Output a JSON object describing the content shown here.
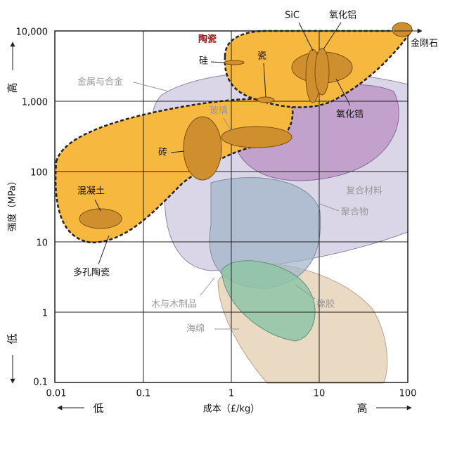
{
  "axes": {
    "x_label": "成本（£/kg）",
    "y_label": "强度（MPa）",
    "x_ticks": [
      "0.01",
      "0.1",
      "1",
      "10",
      "100"
    ],
    "y_ticks": [
      "10,000",
      "1,000",
      "100",
      "10",
      "1",
      "0.1"
    ],
    "x_low": "低",
    "x_high": "高",
    "y_high": "高",
    "y_low": "低"
  },
  "labels": [
    "陶瓷",
    "硅",
    "瓷",
    "SiC",
    "氧化铝",
    "金刚石",
    "金属与合金",
    "玻璃",
    "氧化锆",
    "砖",
    "混凝土",
    "多孔陶瓷",
    "复合材料",
    "聚合物",
    "木与木制品",
    "橡胶",
    "海绵"
  ]
}
